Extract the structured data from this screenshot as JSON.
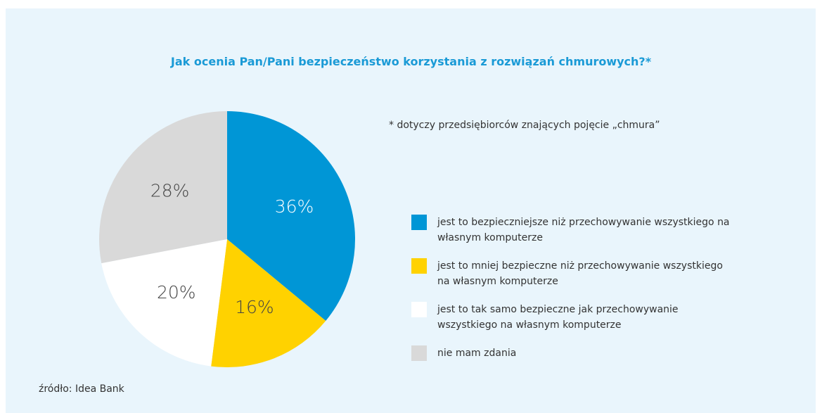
{
  "chart_data": {
    "type": "pie",
    "title": "Jak ocenia Pan/Pani bezpieczeństwo korzystania z rozwiązań chmurowych?*",
    "note": "* dotyczy przedsiębiorców znających pojęcie „chmura”",
    "source": "źródło: Idea Bank",
    "categories": [
      "jest to bezpieczniejsze niż przechowywanie wszystkiego na własnym komputerze",
      "jest to mniej bezpieczne niż przechowywanie wszystkiego na własnym komputerze",
      "jest to tak samo bezpieczne jak przechowywanie wszystkiego na własnym komputerze",
      "nie mam zdania"
    ],
    "values": [
      36,
      16,
      20,
      28
    ],
    "value_labels": [
      "36%",
      "16%",
      "20%",
      "28%"
    ],
    "colors": [
      "#0096d6",
      "#ffd200",
      "#ffffff",
      "#d9d9d9"
    ]
  }
}
